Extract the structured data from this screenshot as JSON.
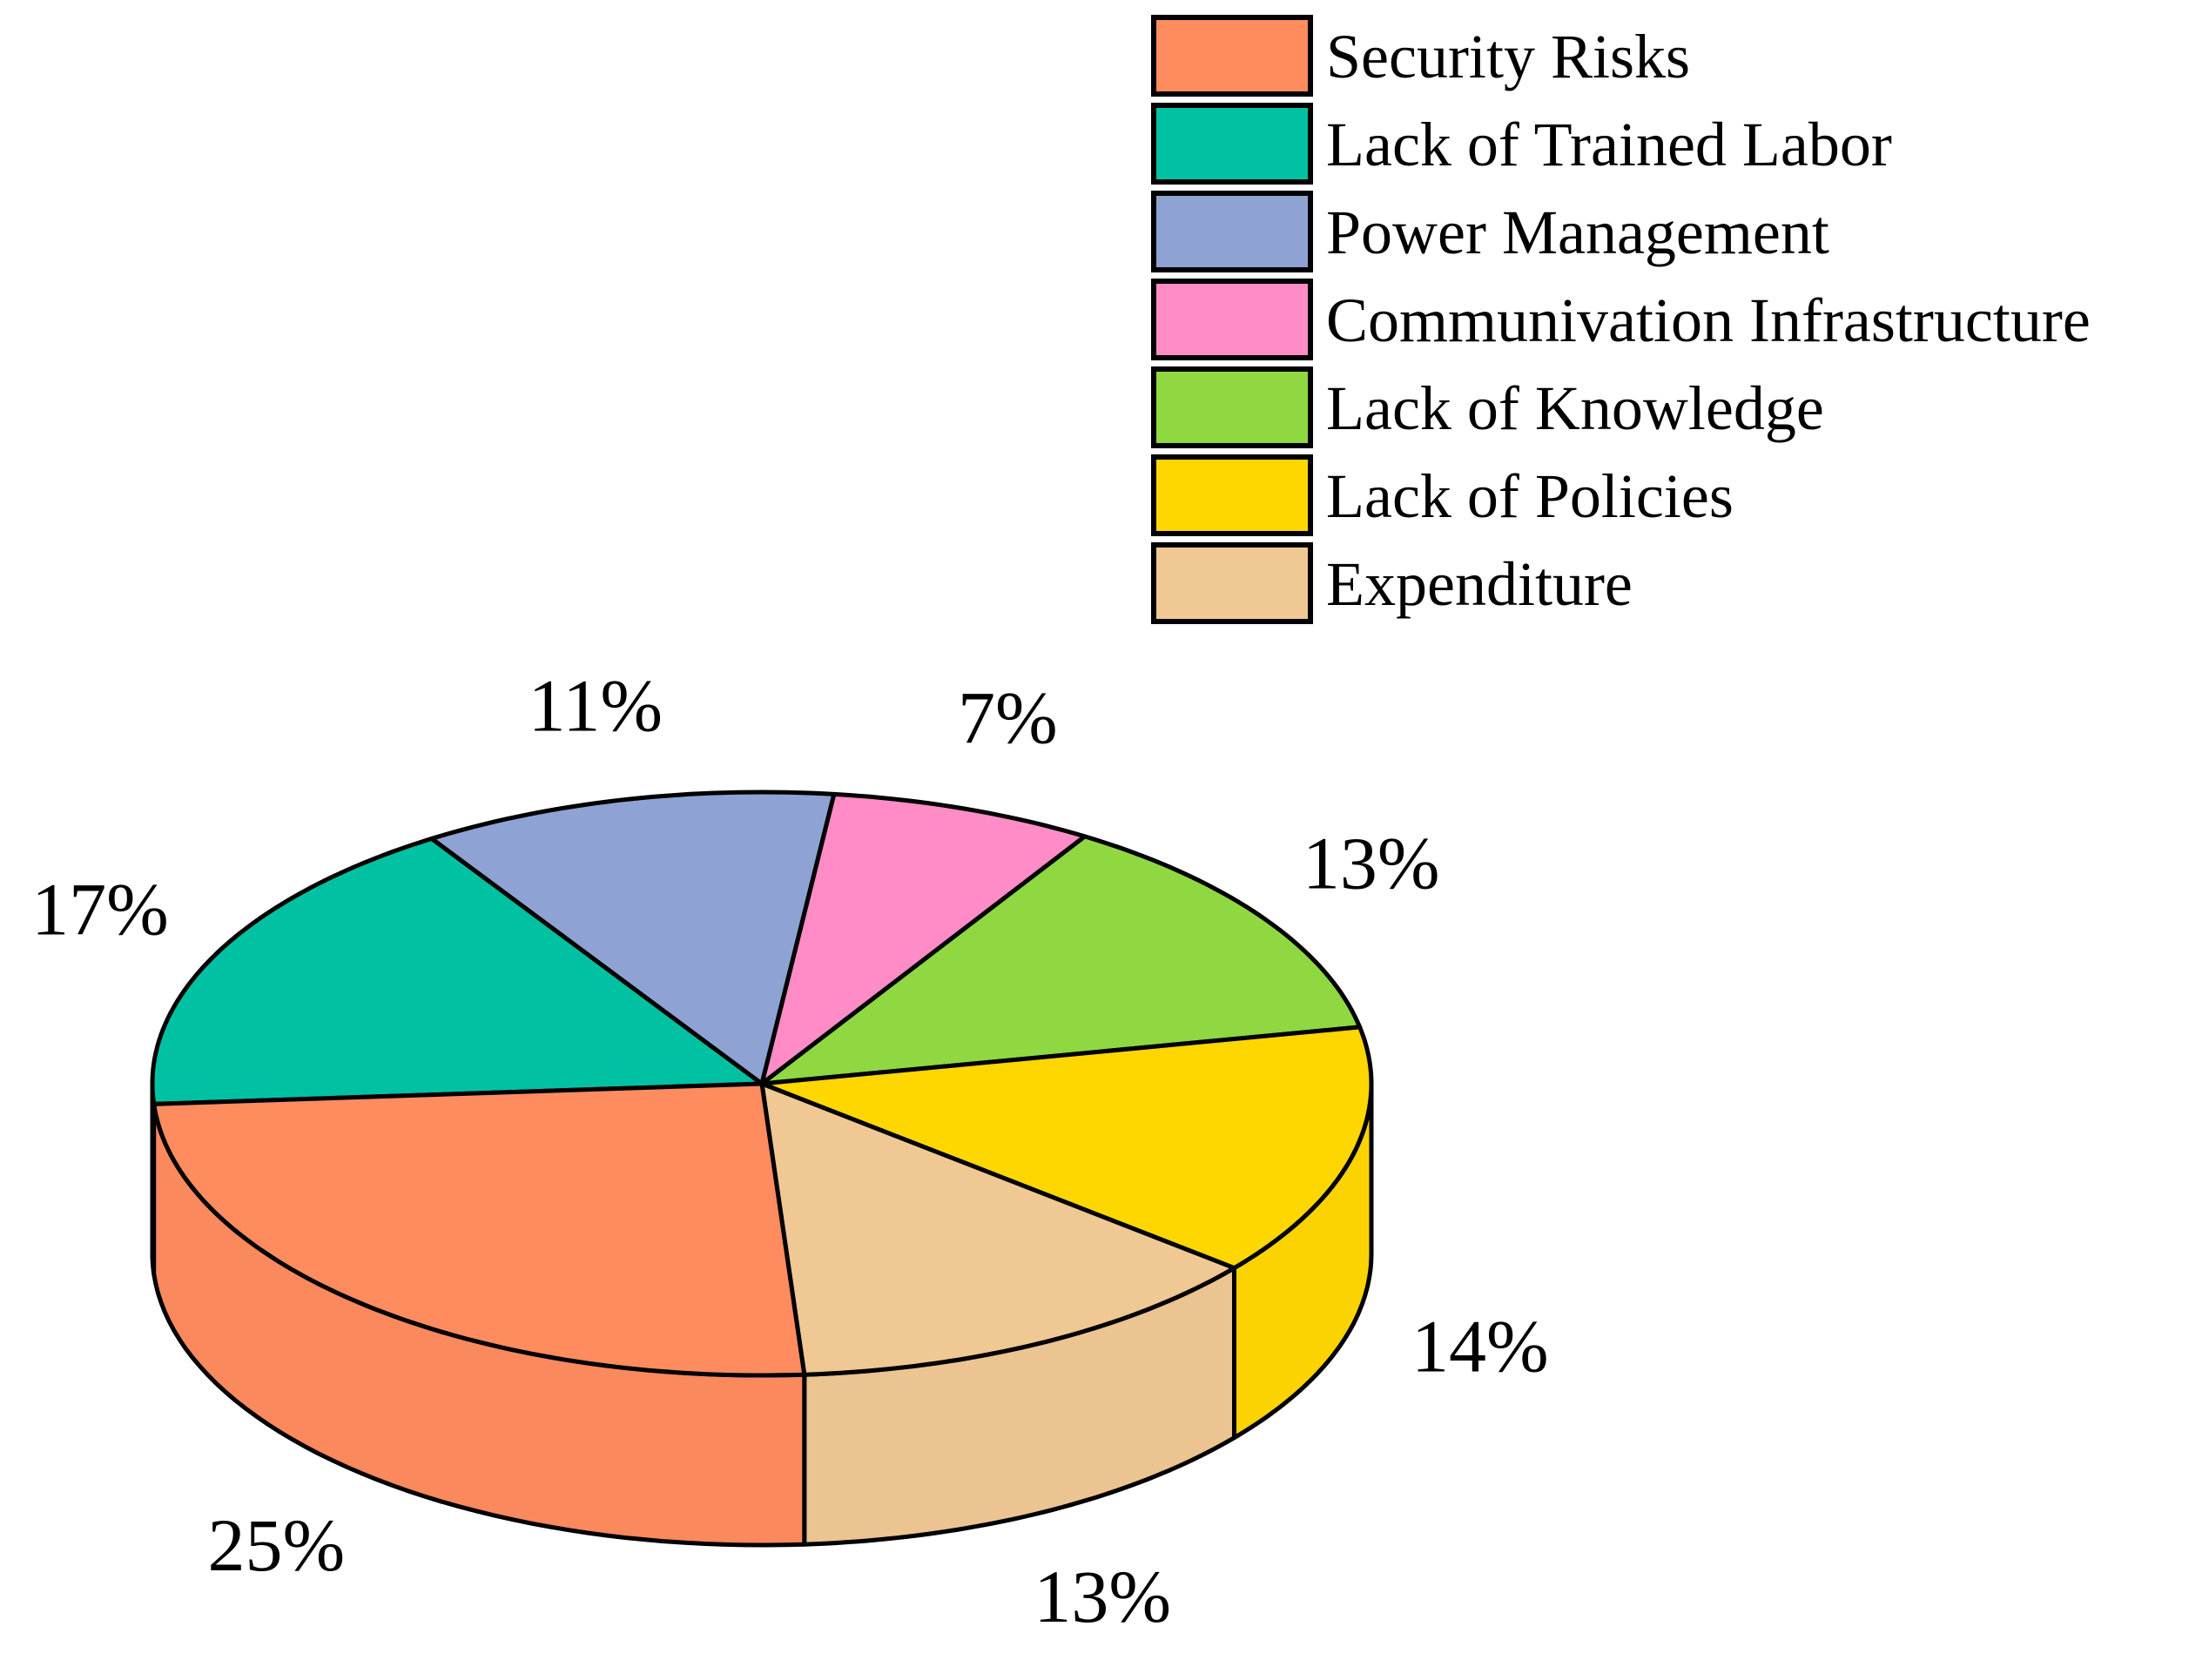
{
  "chart_data": {
    "type": "pie",
    "style": "3d",
    "start_category": "Lack of Trained Labor",
    "direction": "clockwise",
    "categories": [
      "Security Risks",
      "Lack of Trained Labor",
      "Power Management",
      "Communivation Infrastructure",
      "Lack of Knowledge",
      "Lack of Policies",
      "Expenditure"
    ],
    "values": [
      25,
      17,
      11,
      7,
      13,
      14,
      13
    ],
    "labels": [
      "25%",
      "17%",
      "11%",
      "7%",
      "13%",
      "14%",
      "13%"
    ],
    "colors": [
      "#FF8C5F",
      "#00C2A3",
      "#8EA2D3",
      "#FF8CC6",
      "#8FD842",
      "#FFD700",
      "#F0C894"
    ],
    "title": "",
    "legend_position": "top-right"
  }
}
